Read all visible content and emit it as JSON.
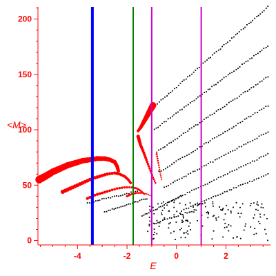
{
  "chart_data": {
    "type": "scatter",
    "xlabel": "E",
    "ylabel": "<M>",
    "xlim": [
      -5.6,
      3.8
    ],
    "ylim": [
      -4,
      211
    ],
    "grid": false,
    "axis_color": "#ff0000",
    "x_ticks": [
      {
        "value": -4,
        "label": "-4"
      },
      {
        "value": -2,
        "label": "-2"
      },
      {
        "value": 0,
        "label": "0"
      },
      {
        "value": 2,
        "label": "2"
      }
    ],
    "y_ticks": [
      {
        "value": 0,
        "label": "0"
      },
      {
        "value": 50,
        "label": "50"
      },
      {
        "value": 100,
        "label": "100"
      },
      {
        "value": 150,
        "label": "150"
      },
      {
        "value": 200,
        "label": "200"
      }
    ],
    "vertical_lines": [
      {
        "x": -3.4,
        "color": "#0000ff",
        "width": 4
      },
      {
        "x": -1.75,
        "color": "#008000",
        "width": 2
      },
      {
        "x": -1.0,
        "color": "#cc00cc",
        "width": 2
      },
      {
        "x": 1.0,
        "color": "#cc00cc",
        "width": 2
      }
    ],
    "red_bands": [
      {
        "name": "",
        "color": "#ff0000",
        "r_start": 5.5,
        "r_end": 2.5,
        "points": [
          [
            -5.55,
            55
          ],
          [
            -5.3,
            58
          ],
          [
            -5.0,
            62
          ],
          [
            -4.7,
            65
          ],
          [
            -4.4,
            68
          ],
          [
            -4.1,
            70
          ],
          [
            -3.8,
            72
          ],
          [
            -3.5,
            73
          ],
          [
            -3.2,
            74
          ],
          [
            -2.9,
            74
          ],
          [
            -2.7,
            73
          ],
          [
            -2.5,
            71
          ],
          [
            -2.4,
            67
          ],
          [
            -2.35,
            63
          ]
        ]
      },
      {
        "name": "",
        "color": "#ff0000",
        "r_start": 3.0,
        "r_end": 1.8,
        "points": [
          [
            -4.6,
            44
          ],
          [
            -4.3,
            47
          ],
          [
            -4.0,
            50
          ],
          [
            -3.7,
            53
          ],
          [
            -3.4,
            56
          ],
          [
            -3.1,
            58
          ],
          [
            -2.8,
            60
          ],
          [
            -2.5,
            61
          ],
          [
            -2.3,
            60
          ],
          [
            -2.1,
            58
          ],
          [
            -1.95,
            55
          ],
          [
            -1.85,
            52
          ]
        ]
      },
      {
        "name": "",
        "color": "#ff0000",
        "r_start": 2.2,
        "r_end": 1.3,
        "points": [
          [
            -3.6,
            38
          ],
          [
            -3.3,
            41
          ],
          [
            -3.0,
            43
          ],
          [
            -2.7,
            45
          ],
          [
            -2.4,
            47
          ],
          [
            -2.1,
            48
          ],
          [
            -1.8,
            48
          ],
          [
            -1.6,
            47
          ],
          [
            -1.45,
            45
          ],
          [
            -1.3,
            42
          ]
        ]
      },
      {
        "name": "",
        "color": "#ff0000",
        "r_start": 1.6,
        "r_end": 1.0,
        "points": [
          [
            -2.0,
            40
          ],
          [
            -1.8,
            42
          ],
          [
            -1.6,
            43
          ],
          [
            -1.4,
            43
          ],
          [
            -1.2,
            42
          ],
          [
            -1.0,
            40
          ]
        ]
      },
      {
        "name": "",
        "color": "#ff0000",
        "r_start": 4.8,
        "r_end": 2.0,
        "points": [
          [
            -0.95,
            122
          ],
          [
            -1.05,
            118
          ],
          [
            -1.15,
            114
          ],
          [
            -1.25,
            110
          ],
          [
            -1.35,
            106
          ],
          [
            -1.45,
            102
          ],
          [
            -1.55,
            99
          ]
        ]
      },
      {
        "name": "",
        "color": "#ff0000",
        "r_start": 2.6,
        "r_end": 1.3,
        "points": [
          [
            -1.55,
            94
          ],
          [
            -1.5,
            90
          ],
          [
            -1.45,
            86
          ],
          [
            -1.35,
            81
          ],
          [
            -1.25,
            75
          ],
          [
            -1.15,
            69
          ],
          [
            -1.05,
            63
          ],
          [
            -0.95,
            57
          ],
          [
            -0.85,
            52
          ]
        ]
      },
      {
        "name": "",
        "color": "#ff0000",
        "r_start": 1.4,
        "r_end": 1.0,
        "points": [
          [
            -0.8,
            78
          ],
          [
            -0.75,
            72
          ],
          [
            -0.7,
            66
          ],
          [
            -0.65,
            60
          ],
          [
            -0.6,
            55
          ]
        ]
      }
    ],
    "black_bands": [
      {
        "x0": -0.85,
        "y0": 122,
        "x1": 3.7,
        "y1": 211,
        "n": 60
      },
      {
        "x0": -0.9,
        "y0": 100,
        "x1": 3.7,
        "y1": 176,
        "n": 58
      },
      {
        "x0": -0.8,
        "y0": 80,
        "x1": 3.7,
        "y1": 148,
        "n": 55
      },
      {
        "x0": -0.7,
        "y0": 62,
        "x1": 3.7,
        "y1": 122,
        "n": 52
      },
      {
        "x0": -0.5,
        "y0": 48,
        "x1": 3.7,
        "y1": 98,
        "n": 48
      },
      {
        "x0": -0.2,
        "y0": 36,
        "x1": 3.7,
        "y1": 78,
        "n": 44
      },
      {
        "x0": 0.3,
        "y0": 28,
        "x1": 3.7,
        "y1": 60,
        "n": 38
      },
      {
        "x0": -3.6,
        "y0": 34,
        "x1": -1.5,
        "y1": 45,
        "n": 26
      },
      {
        "x0": -2.9,
        "y0": 26,
        "x1": -1.2,
        "y1": 38,
        "n": 24
      },
      {
        "x0": -1.4,
        "y0": 22,
        "x1": 0.2,
        "y1": 40,
        "n": 24
      },
      {
        "x0": -1.1,
        "y0": 14,
        "x1": 0.8,
        "y1": 28,
        "n": 22
      }
    ],
    "black_cloud": {
      "x_range": [
        -1.2,
        3.7
      ],
      "y_range": [
        0,
        35
      ],
      "n": 160
    }
  }
}
